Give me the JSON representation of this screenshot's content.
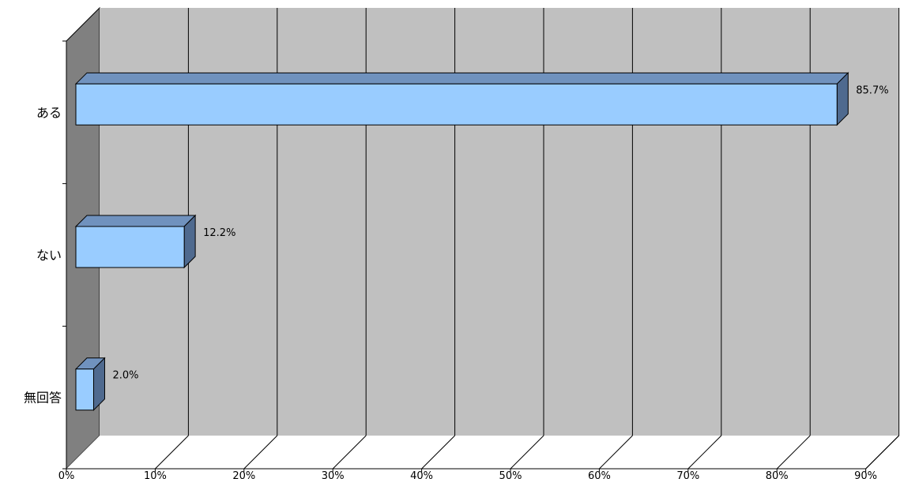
{
  "chart_data": {
    "type": "bar",
    "orientation": "horizontal",
    "style": "3d",
    "categories": [
      "ある",
      "ない",
      "無回答"
    ],
    "values": [
      85.7,
      12.2,
      2.0
    ],
    "data_labels": [
      "85.7%",
      "12.2%",
      "2.0%"
    ],
    "xlim": [
      0,
      90
    ],
    "x_ticks": [
      0,
      10,
      20,
      30,
      40,
      50,
      60,
      70,
      80,
      90
    ],
    "x_tick_labels": [
      "0%",
      "10%",
      "20%",
      "30%",
      "40%",
      "50%",
      "60%",
      "70%",
      "80%",
      "90%"
    ],
    "grid": true,
    "legend": false,
    "colors": {
      "bar_front": "#99ccff",
      "bar_top": "#7092be",
      "bar_side": "#4f6a8f",
      "back_wall": "#c0c0c0",
      "side_wall": "#808080",
      "floor": "#ffffff",
      "gridline": "#000000"
    }
  }
}
